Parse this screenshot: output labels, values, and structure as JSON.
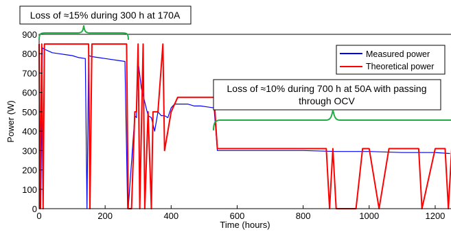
{
  "chart_data": {
    "type": "line",
    "title": "",
    "xlabel": "Time (hours)",
    "ylabel": "Power (W)",
    "xlim": [
      0,
      1250
    ],
    "ylim": [
      0,
      900
    ],
    "x_ticks": [
      0,
      200,
      400,
      600,
      800,
      1000,
      1200
    ],
    "y_ticks": [
      0,
      100,
      200,
      300,
      400,
      500,
      600,
      700,
      800,
      900
    ],
    "grid": false,
    "legend_position": "top-right",
    "colors": {
      "measured": "#0000ff",
      "theoretical": "#ff0000",
      "annotation": "#22aa44"
    },
    "series": [
      {
        "name": "Measured power",
        "color": "#0000ff",
        "x": [
          5,
          10,
          20,
          40,
          60,
          80,
          100,
          120,
          140,
          145,
          150,
          160,
          180,
          200,
          220,
          240,
          260,
          268,
          270,
          290,
          295,
          300,
          310,
          320,
          330,
          340,
          350,
          360,
          370,
          380,
          390,
          400,
          410,
          430,
          450,
          470,
          490,
          510,
          530,
          540,
          560,
          600,
          700,
          800,
          900,
          1000,
          1100,
          1200,
          1245
        ],
        "y": [
          0,
          830,
          820,
          805,
          800,
          795,
          790,
          780,
          775,
          0,
          790,
          785,
          780,
          775,
          770,
          765,
          760,
          0,
          0,
          480,
          470,
          760,
          620,
          550,
          480,
          470,
          400,
          500,
          480,
          480,
          470,
          520,
          540,
          540,
          540,
          530,
          530,
          525,
          520,
          300,
          300,
          300,
          300,
          300,
          295,
          295,
          290,
          290,
          285
        ]
      },
      {
        "name": "Theoretical power",
        "color": "#ff0000",
        "x": [
          0,
          3,
          8,
          12,
          16,
          150,
          154,
          160,
          265,
          270,
          280,
          290,
          295,
          300,
          305,
          315,
          320,
          330,
          340,
          345,
          360,
          375,
          380,
          400,
          420,
          440,
          460,
          480,
          500,
          520,
          530,
          540,
          560,
          600,
          700,
          720,
          760,
          800,
          840,
          870,
          880,
          890,
          900,
          960,
          980,
          1000,
          1030,
          1060,
          1100,
          1150,
          1160,
          1200,
          1230,
          1240,
          1250
        ],
        "y": [
          850,
          0,
          850,
          0,
          850,
          850,
          0,
          850,
          850,
          0,
          0,
          500,
          500,
          850,
          0,
          850,
          0,
          500,
          0,
          500,
          500,
          850,
          300,
          500,
          575,
          575,
          575,
          575,
          575,
          575,
          575,
          310,
          310,
          310,
          310,
          310,
          310,
          310,
          310,
          310,
          0,
          310,
          0,
          0,
          310,
          310,
          0,
          310,
          310,
          310,
          0,
          310,
          310,
          0,
          310
        ]
      }
    ],
    "legend": [
      "Measured power",
      "Theoretical power"
    ],
    "annotations": [
      {
        "text": "Loss of ≈15% during 300 h at 170A",
        "x_range": [
          0,
          270
        ]
      },
      {
        "text_line1": "Loss of ≈10% during 700 h at 50A with passing",
        "text_line2": "through OCV",
        "x_range": [
          530,
          1250
        ]
      }
    ]
  }
}
